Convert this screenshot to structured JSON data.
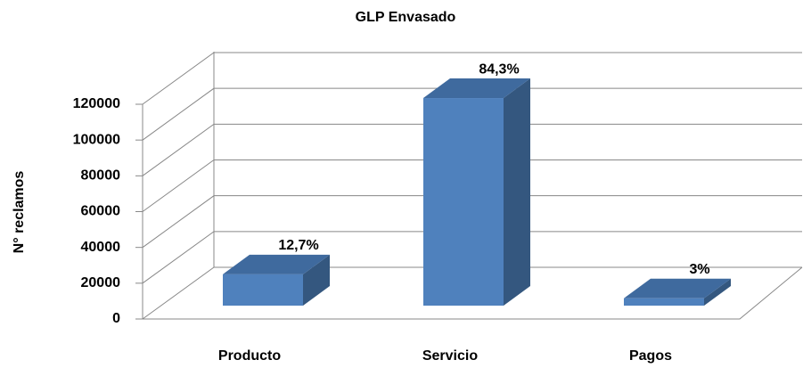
{
  "chart_data": {
    "type": "bar3d",
    "title": "GLP Envasado",
    "y_label": "N° reclamos",
    "categories": [
      "Producto",
      "Servicio",
      "Pagos"
    ],
    "values": [
      17500,
      116000,
      4100
    ],
    "percent_labels": [
      "12,7%",
      "84,3%",
      "3%"
    ],
    "color": "#4f81bd",
    "ylim": [
      0,
      120000
    ],
    "yticks": [
      0,
      20000,
      40000,
      60000,
      80000,
      100000,
      120000
    ],
    "grid": true
  }
}
